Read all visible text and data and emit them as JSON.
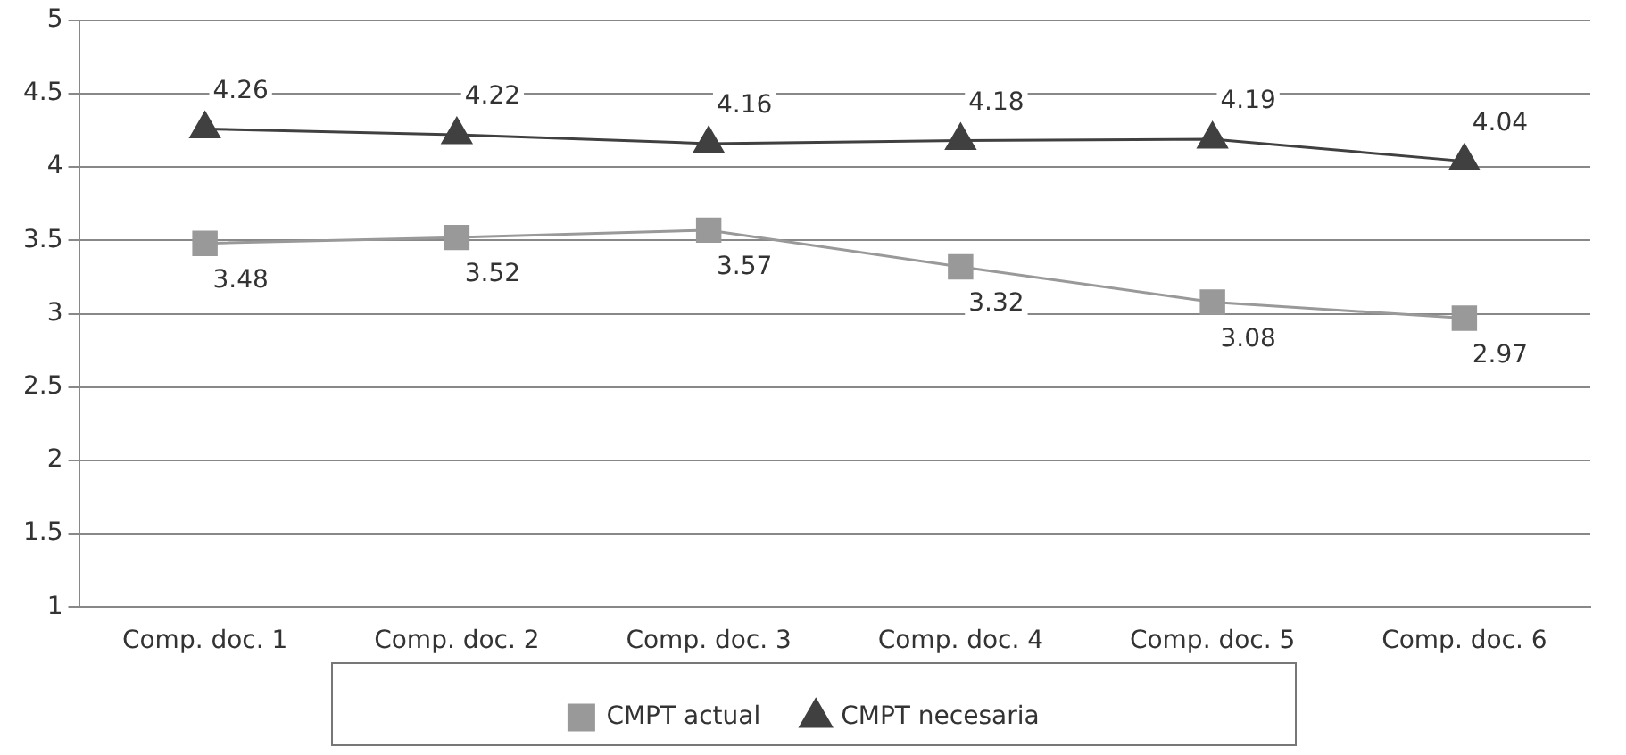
{
  "chart_data": {
    "type": "line",
    "categories": [
      "Comp. doc. 1",
      "Comp. doc. 2",
      "Comp. doc. 3",
      "Comp. doc. 4",
      "Comp. doc. 5",
      "Comp. doc. 6"
    ],
    "series": [
      {
        "name": "CMPT actual",
        "color": "#999999",
        "marker": "square",
        "values": [
          3.48,
          3.52,
          3.57,
          3.32,
          3.08,
          2.97
        ]
      },
      {
        "name": "CMPT necesaria",
        "color": "#404040",
        "marker": "triangle",
        "values": [
          4.26,
          4.22,
          4.16,
          4.18,
          4.19,
          4.04
        ]
      }
    ],
    "ylim": [
      1,
      5
    ],
    "yticks": [
      1,
      1.5,
      2,
      2.5,
      3,
      3.5,
      4,
      4.5,
      5
    ],
    "grid": "y",
    "legend": "bottom",
    "data_labels": true
  }
}
